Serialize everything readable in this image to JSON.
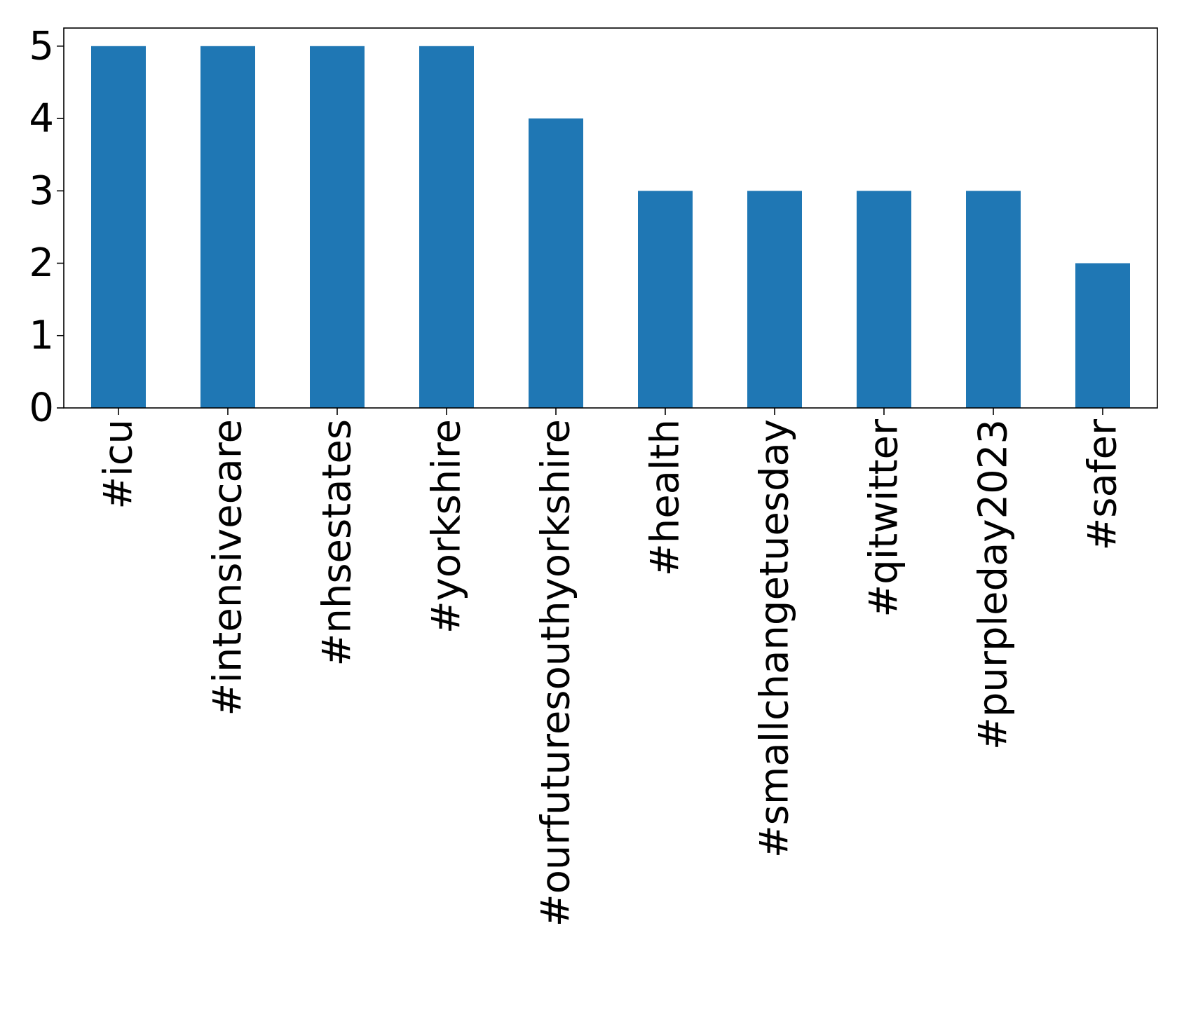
{
  "chart_data": {
    "type": "bar",
    "title": "",
    "xlabel": "",
    "ylabel": "",
    "categories": [
      "#icu",
      "#intensivecare",
      "#nhsestates",
      "#yorkshire",
      "#ourfuturesouthyorkshire",
      "#health",
      "#smallchangetuesday",
      "#qitwitter",
      "#purpleday2023",
      "#safer"
    ],
    "values": [
      5,
      5,
      5,
      5,
      4,
      3,
      3,
      3,
      3,
      2
    ],
    "ylim": [
      0,
      5.25
    ],
    "yticks": [
      0,
      1,
      2,
      3,
      4,
      5
    ],
    "bar_color": "#1f77b4",
    "grid": false,
    "legend": "none"
  }
}
